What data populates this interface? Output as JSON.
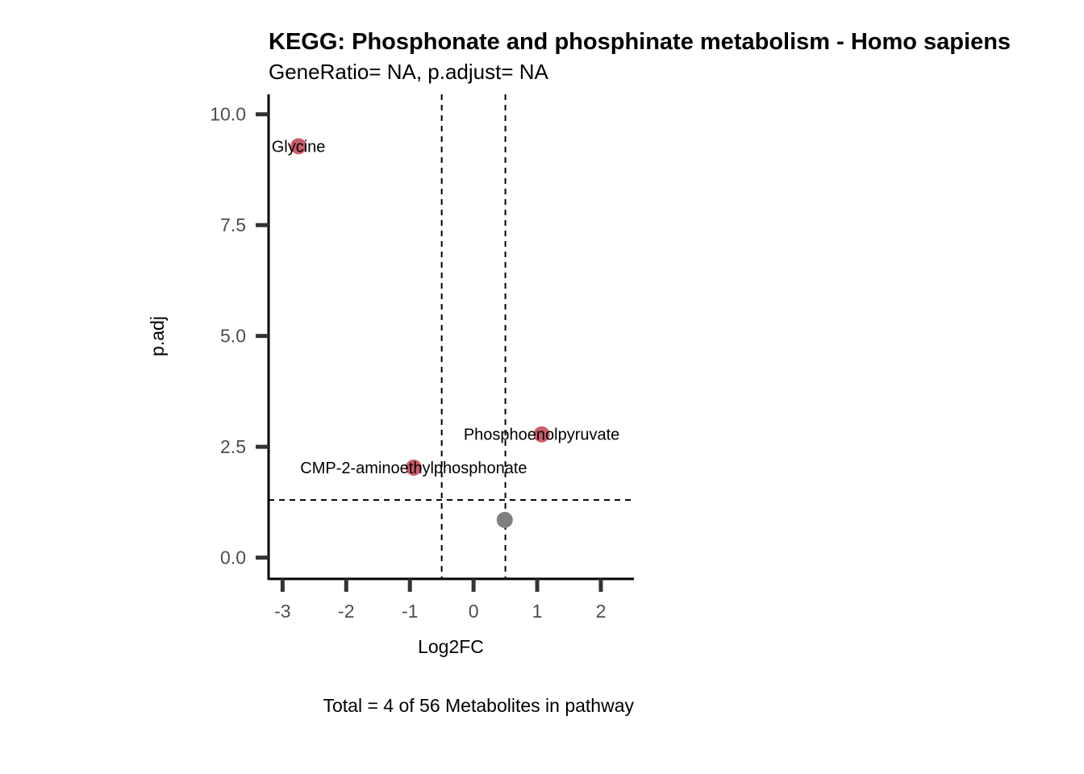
{
  "chart_data": {
    "type": "scatter",
    "title": "KEGG: Phosphonate and phosphinate metabolism - Homo sapiens",
    "subtitle": "GeneRatio= NA, p.adjust= NA",
    "xlabel": "Log2FC",
    "ylabel": "p.adj",
    "caption": "Total = 4 of 56 Metabolites in pathway",
    "xlim": [
      -3.22,
      2.52
    ],
    "ylim": [
      -0.48,
      10.45
    ],
    "xticks": [
      -3,
      -2,
      -1,
      0,
      1,
      2
    ],
    "xtick_labels": [
      "-3",
      "-2",
      "-1",
      "0",
      "1",
      "2"
    ],
    "yticks": [
      0,
      2.5,
      5,
      7.5,
      10
    ],
    "ytick_labels": [
      "0.0",
      "2.5",
      "5.0",
      "7.5",
      "10.0"
    ],
    "vlines": [
      -0.5,
      0.5
    ],
    "hlines": [
      1.3
    ],
    "grid": false,
    "points": [
      {
        "x": -2.75,
        "y": 9.28,
        "label": "Glycine",
        "color": "#cd5c6b"
      },
      {
        "x": -0.94,
        "y": 2.03,
        "label": "CMP-2-aminoethylphosphonate",
        "color": "#cd5c6b"
      },
      {
        "x": 1.07,
        "y": 2.78,
        "label": "Phosphoenolpyruvate",
        "color": "#cd5c6b"
      },
      {
        "x": 0.49,
        "y": 0.85,
        "label": "",
        "color": "#7f7f7f"
      }
    ]
  }
}
